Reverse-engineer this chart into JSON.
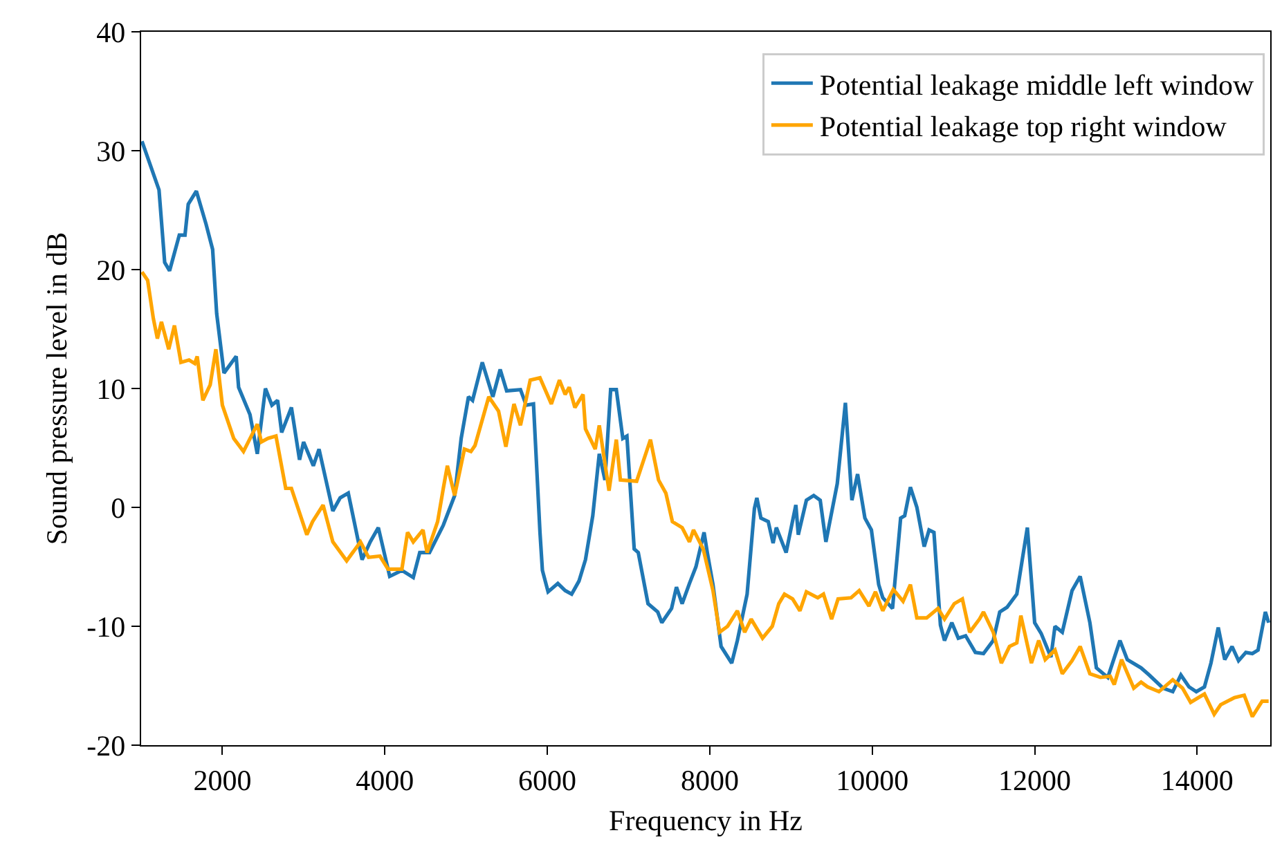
{
  "chart_data": {
    "type": "line",
    "xlabel": "Frequency in Hz",
    "ylabel": "Sound pressure level in dB",
    "xlim": [
      1000,
      14900
    ],
    "xticks": [
      2000,
      4000,
      6000,
      8000,
      10000,
      12000,
      14000
    ],
    "ylim": [
      -20,
      40
    ],
    "yticks": [
      -20,
      -10,
      0,
      10,
      20,
      30,
      40
    ],
    "grid": false,
    "legend": "top right",
    "marker": "none",
    "line_style": "solid",
    "series": [
      {
        "name": "Potential leakage middle left window",
        "color": "#1f77b4",
        "x": [
          1010,
          1220,
          1290,
          1350,
          1470,
          1540,
          1580,
          1680,
          1800,
          1880,
          1930,
          2020,
          2170,
          2200,
          2340,
          2430,
          2530,
          2610,
          2680,
          2730,
          2850,
          2950,
          3000,
          3120,
          3190,
          3360,
          3450,
          3550,
          3720,
          3820,
          3920,
          4060,
          4210,
          4350,
          4430,
          4550,
          4720,
          4860,
          4940,
          5030,
          5080,
          5200,
          5330,
          5420,
          5500,
          5670,
          5740,
          5830,
          5910,
          5940,
          6010,
          6130,
          6220,
          6300,
          6390,
          6470,
          6560,
          6640,
          6710,
          6780,
          6850,
          6930,
          6980,
          7070,
          7120,
          7240,
          7360,
          7410,
          7530,
          7590,
          7660,
          7750,
          7830,
          7930,
          7970,
          8040,
          8140,
          8270,
          8340,
          8460,
          8550,
          8580,
          8630,
          8720,
          8780,
          8820,
          8940,
          9060,
          9090,
          9190,
          9280,
          9360,
          9430,
          9570,
          9670,
          9750,
          9820,
          9910,
          9990,
          10080,
          10130,
          10250,
          10350,
          10400,
          10470,
          10550,
          10640,
          10700,
          10760,
          10840,
          10890,
          10980,
          11060,
          11150,
          11270,
          11370,
          11490,
          11570,
          11660,
          11780,
          11910,
          12000,
          12080,
          12200,
          12250,
          12340,
          12460,
          12560,
          12680,
          12760,
          12900,
          13050,
          13140,
          13310,
          13410,
          13580,
          13700,
          13800,
          13900,
          13990,
          14090,
          14170,
          14260,
          14340,
          14430,
          14510,
          14600,
          14680,
          14750,
          14840,
          14880
        ],
        "values": [
          30.8,
          26.7,
          20.6,
          19.9,
          22.9,
          22.9,
          25.5,
          26.6,
          23.8,
          21.7,
          16.3,
          11.3,
          12.7,
          10.1,
          7.8,
          4.5,
          10.0,
          8.6,
          9.0,
          6.3,
          8.4,
          4.0,
          5.5,
          3.5,
          4.9,
          -0.3,
          0.8,
          1.2,
          -4.4,
          -2.9,
          -1.7,
          -5.8,
          -5.3,
          -5.9,
          -3.8,
          -3.8,
          -1.5,
          1.0,
          5.8,
          9.3,
          9.0,
          12.2,
          9.3,
          11.6,
          9.8,
          9.9,
          8.6,
          8.7,
          -2.1,
          -5.3,
          -7.1,
          -6.4,
          -7.0,
          -7.3,
          -6.2,
          -4.4,
          -0.7,
          4.5,
          2.3,
          9.9,
          9.9,
          5.8,
          6.0,
          -3.5,
          -3.8,
          -8.1,
          -8.8,
          -9.7,
          -8.5,
          -6.7,
          -8.1,
          -6.4,
          -5.0,
          -2.1,
          -3.8,
          -6.5,
          -11.7,
          -13.1,
          -11.2,
          -7.3,
          -0.1,
          0.8,
          -0.9,
          -1.2,
          -3.0,
          -1.7,
          -3.8,
          0.2,
          -2.3,
          0.6,
          1.0,
          0.6,
          -2.9,
          2.0,
          8.8,
          0.6,
          2.8,
          -0.9,
          -1.9,
          -6.5,
          -7.6,
          -8.5,
          -0.9,
          -0.7,
          1.7,
          0.0,
          -3.3,
          -1.9,
          -2.1,
          -9.9,
          -11.2,
          -9.7,
          -11.0,
          -10.8,
          -12.2,
          -12.3,
          -11.2,
          -8.8,
          -8.4,
          -7.3,
          -1.7,
          -9.7,
          -10.6,
          -12.6,
          -10.0,
          -10.5,
          -7.0,
          -5.8,
          -9.7,
          -13.5,
          -14.3,
          -11.2,
          -12.8,
          -13.5,
          -14.1,
          -15.2,
          -15.5,
          -14.1,
          -15.1,
          -15.5,
          -15.1,
          -13.1,
          -10.1,
          -12.8,
          -11.7,
          -12.9,
          -12.2,
          -12.3,
          -12.0,
          -8.8,
          -9.7
        ]
      },
      {
        "name": "Potential leakage top right window",
        "color": "#ffa500",
        "x": [
          1010,
          1080,
          1150,
          1200,
          1250,
          1340,
          1410,
          1490,
          1590,
          1660,
          1690,
          1760,
          1850,
          1920,
          2000,
          2140,
          2260,
          2430,
          2480,
          2560,
          2660,
          2780,
          2850,
          3040,
          3110,
          3240,
          3360,
          3530,
          3700,
          3800,
          3940,
          4040,
          4210,
          4280,
          4350,
          4470,
          4520,
          4650,
          4720,
          4770,
          4860,
          4980,
          5060,
          5110,
          5280,
          5400,
          5490,
          5590,
          5670,
          5790,
          5910,
          6050,
          6150,
          6220,
          6270,
          6340,
          6440,
          6470,
          6590,
          6640,
          6760,
          6850,
          6900,
          7100,
          7270,
          7370,
          7460,
          7540,
          7660,
          7750,
          7800,
          7920,
          8040,
          8120,
          8220,
          8340,
          8430,
          8510,
          8650,
          8770,
          8850,
          8920,
          9020,
          9110,
          9190,
          9330,
          9400,
          9500,
          9580,
          9740,
          9840,
          9960,
          10040,
          10130,
          10260,
          10380,
          10470,
          10550,
          10670,
          10810,
          10890,
          11010,
          11110,
          11200,
          11320,
          11370,
          11490,
          11590,
          11690,
          11780,
          11830,
          11960,
          12050,
          12130,
          12250,
          12340,
          12460,
          12560,
          12680,
          12810,
          12930,
          12980,
          13070,
          13220,
          13310,
          13390,
          13530,
          13700,
          13820,
          13920,
          14090,
          14210,
          14290,
          14460,
          14580,
          14680,
          14800,
          14880
        ],
        "values": [
          19.8,
          19.1,
          15.9,
          14.2,
          15.6,
          13.3,
          15.3,
          12.2,
          12.4,
          12.1,
          12.7,
          9.0,
          10.3,
          13.3,
          8.6,
          5.8,
          4.7,
          7.0,
          5.5,
          5.8,
          6.0,
          1.6,
          1.6,
          -2.3,
          -1.2,
          0.2,
          -2.9,
          -4.5,
          -2.9,
          -4.2,
          -4.1,
          -5.2,
          -5.2,
          -2.1,
          -2.9,
          -1.9,
          -3.8,
          -1.2,
          1.6,
          3.5,
          1.0,
          4.9,
          4.7,
          5.2,
          9.3,
          8.1,
          5.1,
          8.7,
          6.9,
          10.7,
          10.9,
          8.7,
          10.7,
          9.5,
          10.1,
          8.4,
          9.5,
          6.6,
          4.9,
          6.9,
          1.4,
          5.7,
          2.3,
          2.2,
          5.7,
          2.3,
          1.2,
          -1.2,
          -1.7,
          -2.9,
          -1.9,
          -3.5,
          -7.0,
          -10.5,
          -10.0,
          -8.7,
          -10.5,
          -9.4,
          -11.0,
          -10.0,
          -8.1,
          -7.3,
          -7.7,
          -8.7,
          -7.1,
          -7.6,
          -7.3,
          -9.4,
          -7.7,
          -7.6,
          -7.0,
          -8.3,
          -7.1,
          -8.7,
          -6.9,
          -7.9,
          -6.5,
          -9.3,
          -9.3,
          -8.5,
          -9.4,
          -8.1,
          -7.7,
          -10.5,
          -9.4,
          -8.8,
          -10.5,
          -13.1,
          -11.7,
          -11.4,
          -9.1,
          -13.1,
          -11.2,
          -12.8,
          -12.0,
          -14.0,
          -12.9,
          -11.7,
          -14.0,
          -14.3,
          -14.2,
          -14.9,
          -12.8,
          -15.2,
          -14.7,
          -15.1,
          -15.5,
          -14.5,
          -15.2,
          -16.4,
          -15.7,
          -17.4,
          -16.6,
          -16.0,
          -15.8,
          -17.6,
          -16.3,
          -16.3
        ]
      }
    ]
  }
}
